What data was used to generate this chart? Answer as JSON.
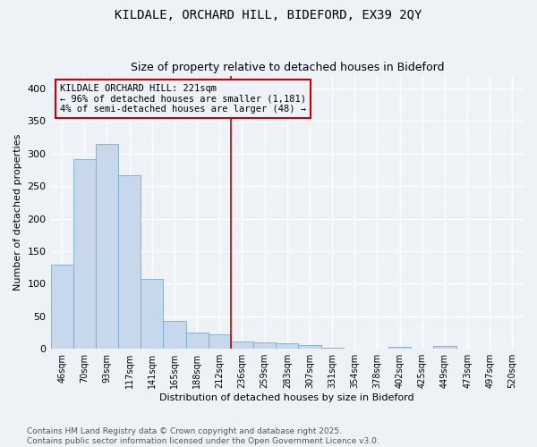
{
  "title": "KILDALE, ORCHARD HILL, BIDEFORD, EX39 2QY",
  "subtitle": "Size of property relative to detached houses in Bideford",
  "xlabel": "Distribution of detached houses by size in Bideford",
  "ylabel": "Number of detached properties",
  "categories": [
    "46sqm",
    "70sqm",
    "93sqm",
    "117sqm",
    "141sqm",
    "165sqm",
    "188sqm",
    "212sqm",
    "236sqm",
    "259sqm",
    "283sqm",
    "307sqm",
    "331sqm",
    "354sqm",
    "378sqm",
    "402sqm",
    "425sqm",
    "449sqm",
    "473sqm",
    "497sqm",
    "520sqm"
  ],
  "values": [
    130,
    292,
    315,
    267,
    107,
    43,
    25,
    22,
    11,
    10,
    8,
    6,
    2,
    0,
    0,
    3,
    0,
    4,
    0,
    0,
    0
  ],
  "bar_color": "#c8d8ec",
  "bar_edge_color": "#7aaac8",
  "vline_x": 7.5,
  "vline_color": "#cc0000",
  "annotation_text": "KILDALE ORCHARD HILL: 221sqm\n← 96% of detached houses are smaller (1,181)\n4% of semi-detached houses are larger (48) →",
  "annotation_box_color": "#cc0000",
  "ylim": [
    0,
    420
  ],
  "yticks": [
    0,
    50,
    100,
    150,
    200,
    250,
    300,
    350,
    400
  ],
  "background_color": "#eef2f7",
  "grid_color": "#ffffff",
  "footer": "Contains HM Land Registry data © Crown copyright and database right 2025.\nContains public sector information licensed under the Open Government Licence v3.0.",
  "title_fontsize": 10,
  "subtitle_fontsize": 9,
  "annotation_fontsize": 7.5,
  "footer_fontsize": 6.5,
  "ylabel_fontsize": 8,
  "xlabel_fontsize": 8
}
